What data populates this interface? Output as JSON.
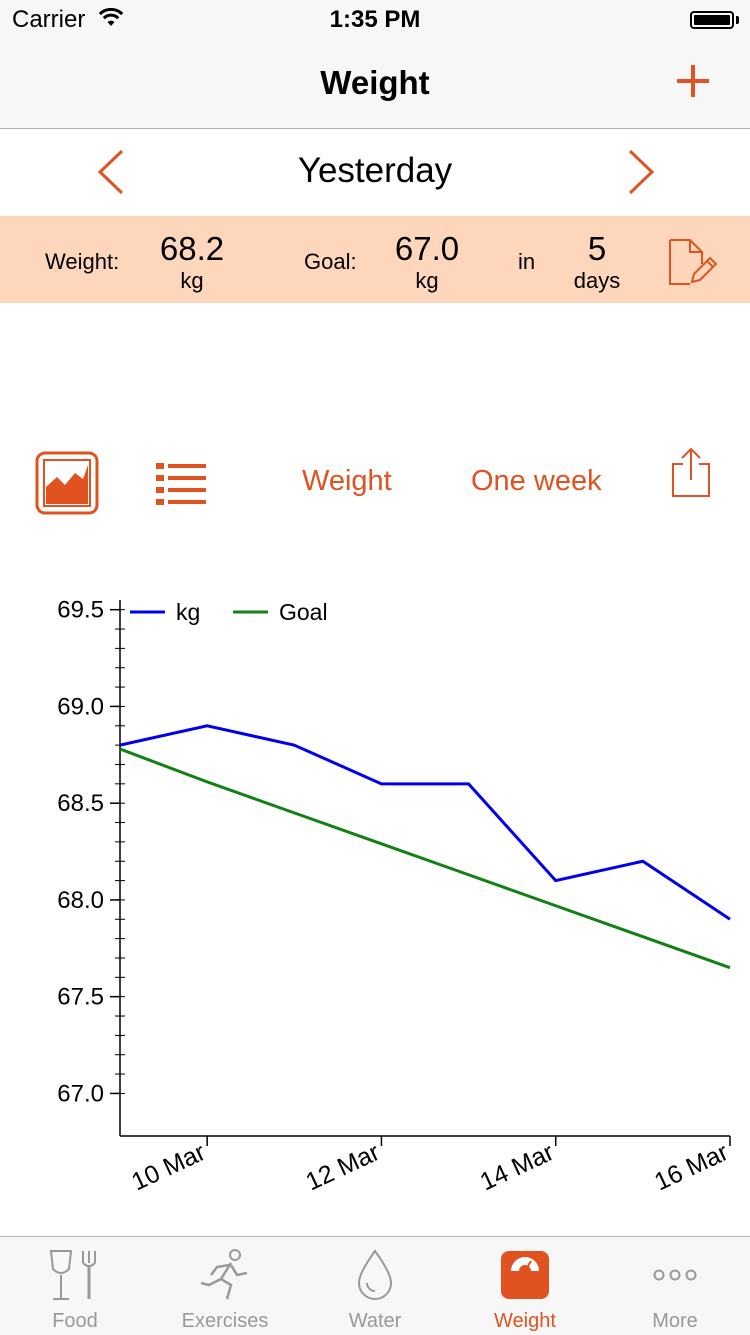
{
  "status_bar": {
    "carrier": "Carrier",
    "time": "1:35 PM"
  },
  "nav": {
    "title": "Weight",
    "add_icon": "plus-icon"
  },
  "date_nav": {
    "label": "Yesterday",
    "prev_icon": "chevron-left-icon",
    "next_icon": "chevron-right-icon"
  },
  "summary": {
    "weight_label": "Weight:",
    "weight_value": "68.2",
    "weight_unit": "kg",
    "goal_label": "Goal:",
    "goal_value": "67.0",
    "goal_unit": "kg",
    "in_label": "in",
    "days_value": "5",
    "days_unit": "days",
    "edit_icon": "edit-note-icon"
  },
  "toolbar": {
    "chart_view_icon": "area-chart-icon",
    "list_view_icon": "list-icon",
    "metric_label": "Weight",
    "period_label": "One week",
    "share_icon": "share-icon"
  },
  "colors": {
    "accent": "#e0521f",
    "summary_bg": "#fdd6bb",
    "kg_line": "#0000ee",
    "goal_line": "#128012"
  },
  "chart_data": {
    "type": "line",
    "x": [
      "9 Mar",
      "10 Mar",
      "11 Mar",
      "12 Mar",
      "13 Mar",
      "14 Mar",
      "15 Mar",
      "16 Mar"
    ],
    "x_tick_labels": [
      "10 Mar",
      "12 Mar",
      "14 Mar",
      "16 Mar"
    ],
    "y_tick_labels": [
      "67.0",
      "67.5",
      "68.0",
      "68.5",
      "69.0",
      "69.5"
    ],
    "ylim": [
      66.78,
      69.55
    ],
    "series": [
      {
        "name": "kg",
        "color": "#0000ee",
        "values": [
          68.8,
          68.9,
          68.8,
          68.6,
          68.6,
          68.1,
          68.2,
          67.9
        ]
      },
      {
        "name": "Goal",
        "color": "#128012",
        "values": [
          68.78,
          68.61,
          68.45,
          68.29,
          68.13,
          67.97,
          67.81,
          67.65
        ]
      }
    ],
    "legend": "top-left",
    "grid": false
  },
  "tabs": [
    {
      "label": "Food",
      "icon": "food-icon",
      "active": false
    },
    {
      "label": "Exercises",
      "icon": "exercise-runner-icon",
      "active": false
    },
    {
      "label": "Water",
      "icon": "water-drop-icon",
      "active": false
    },
    {
      "label": "Weight",
      "icon": "scale-icon",
      "active": true
    },
    {
      "label": "More",
      "icon": "more-dots-icon",
      "active": false
    }
  ]
}
